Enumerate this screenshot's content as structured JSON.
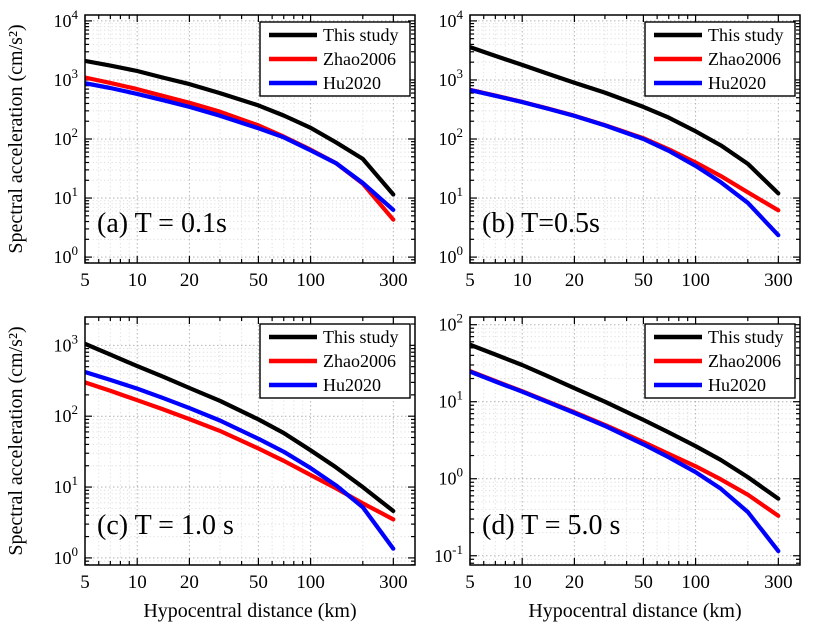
{
  "figure": {
    "background": "#ffffff",
    "xlabel": "Hypocentral distance (km)",
    "ylabel": "Spectral acceleration (cm/s²)",
    "legend": [
      {
        "name": "This study",
        "color": "#000000"
      },
      {
        "name": "Zhao2006",
        "color": "#ff0000"
      },
      {
        "name": "Hu2020",
        "color": "#0000ff"
      }
    ]
  },
  "chart_data": [
    {
      "id": "a",
      "type": "line",
      "annotation": "(a) T = 0.1s",
      "xscale": "log",
      "yscale": "log",
      "xlim": [
        5,
        400
      ],
      "ylim": [
        1,
        10000
      ],
      "xticks": [
        5,
        10,
        20,
        50,
        100,
        300
      ],
      "yticks": [
        1,
        10,
        100,
        1000,
        10000
      ],
      "grid": "major+minor dotted",
      "legend_position": "top-right",
      "xlabel_visible": false,
      "ylabel_visible": true,
      "x": [
        5,
        7,
        10,
        14,
        20,
        30,
        50,
        70,
        100,
        140,
        200,
        300
      ],
      "series": [
        {
          "name": "This study",
          "color": "#000000",
          "values": [
            2100,
            1750,
            1420,
            1100,
            850,
            600,
            370,
            250,
            155,
            88,
            46,
            11.5
          ]
        },
        {
          "name": "Zhao2006",
          "color": "#ff0000",
          "values": [
            1100,
            890,
            700,
            540,
            410,
            290,
            170,
            110,
            66,
            39,
            17.5,
            4.3
          ]
        },
        {
          "name": "Hu2020",
          "color": "#0000ff",
          "values": [
            880,
            730,
            580,
            455,
            350,
            248,
            152,
            107,
            64,
            39,
            18,
            6.3
          ]
        }
      ]
    },
    {
      "id": "b",
      "type": "line",
      "annotation": "(b) T=0.5s",
      "xscale": "log",
      "yscale": "log",
      "xlim": [
        5,
        400
      ],
      "ylim": [
        1,
        10000
      ],
      "xticks": [
        5,
        10,
        20,
        50,
        100,
        300
      ],
      "yticks": [
        1,
        10,
        100,
        1000,
        10000
      ],
      "grid": "major+minor dotted",
      "legend_position": "top-right",
      "xlabel_visible": false,
      "ylabel_visible": false,
      "x": [
        5,
        7,
        10,
        14,
        20,
        30,
        50,
        70,
        100,
        140,
        200,
        300
      ],
      "series": [
        {
          "name": "This study",
          "color": "#000000",
          "values": [
            3600,
            2550,
            1800,
            1280,
            900,
            610,
            350,
            230,
            135,
            78,
            38,
            12
          ]
        },
        {
          "name": "Zhao2006",
          "color": "#ff0000",
          "values": [
            680,
            545,
            425,
            330,
            248,
            172,
            103,
            67,
            40,
            23.5,
            12.5,
            6.2
          ]
        },
        {
          "name": "Hu2020",
          "color": "#0000ff",
          "values": [
            672,
            540,
            422,
            327,
            246,
            170,
            100,
            63,
            35,
            18.5,
            8.3,
            2.35
          ]
        }
      ]
    },
    {
      "id": "c",
      "type": "line",
      "annotation": "(c) T = 1.0 s",
      "xscale": "log",
      "yscale": "log",
      "xlim": [
        5,
        400
      ],
      "ylim": [
        1,
        1000
      ],
      "xticks": [
        5,
        10,
        20,
        50,
        100,
        300
      ],
      "yticks": [
        1,
        10,
        100,
        1000
      ],
      "grid": "major+minor dotted",
      "legend_position": "top-right",
      "xlabel_visible": true,
      "ylabel_visible": true,
      "x": [
        5,
        7,
        10,
        14,
        20,
        30,
        50,
        70,
        100,
        140,
        200,
        300
      ],
      "series": [
        {
          "name": "This study",
          "color": "#000000",
          "values": [
            1050,
            740,
            510,
            365,
            250,
            165,
            90,
            58,
            33,
            19,
            10,
            4.6
          ]
        },
        {
          "name": "Zhao2006",
          "color": "#ff0000",
          "values": [
            300,
            228,
            168,
            126,
            91,
            62,
            35,
            23.5,
            14.8,
            9.6,
            5.9,
            3.5
          ]
        },
        {
          "name": "Hu2020",
          "color": "#0000ff",
          "values": [
            420,
            325,
            245,
            182,
            130,
            87,
            48,
            31.5,
            18.5,
            10.6,
            5.2,
            1.35
          ]
        }
      ]
    },
    {
      "id": "d",
      "type": "line",
      "annotation": "(d) T = 5.0 s",
      "xscale": "log",
      "yscale": "log",
      "xlim": [
        5,
        400
      ],
      "ylim": [
        0.1,
        100
      ],
      "xticks": [
        5,
        10,
        20,
        50,
        100,
        300
      ],
      "yticks": [
        0.1,
        1,
        10,
        100
      ],
      "grid": "major+minor dotted",
      "legend_position": "top-right",
      "xlabel_visible": true,
      "ylabel_visible": false,
      "x": [
        5,
        7,
        10,
        14,
        20,
        30,
        50,
        70,
        100,
        140,
        200,
        300
      ],
      "series": [
        {
          "name": "This study",
          "color": "#000000",
          "values": [
            55,
            41,
            30,
            21.5,
            15,
            10,
            5.8,
            4.0,
            2.65,
            1.75,
            1.05,
            0.55
          ]
        },
        {
          "name": "Zhao2006",
          "color": "#ff0000",
          "values": [
            25,
            18.6,
            13.7,
            10.1,
            7.3,
            5.0,
            3.0,
            2.1,
            1.45,
            0.98,
            0.62,
            0.33
          ]
        },
        {
          "name": "Hu2020",
          "color": "#0000ff",
          "values": [
            24.6,
            18.3,
            13.5,
            9.95,
            7.15,
            4.85,
            2.8,
            1.9,
            1.22,
            0.74,
            0.37,
            0.115
          ]
        }
      ]
    }
  ]
}
